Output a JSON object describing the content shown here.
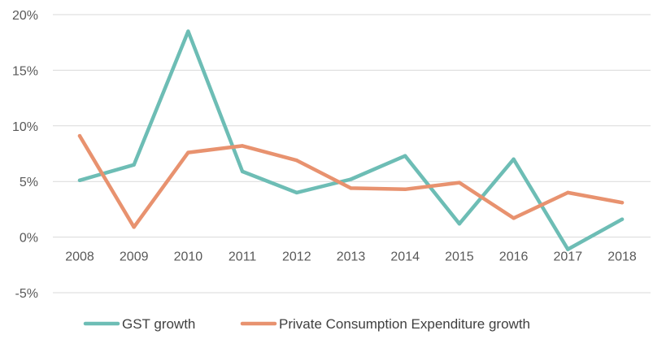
{
  "chart_data": {
    "type": "line",
    "title": "",
    "xlabel": "",
    "ylabel": "",
    "categories": [
      "2008",
      "2009",
      "2010",
      "2011",
      "2012",
      "2013",
      "2014",
      "2015",
      "2016",
      "2017",
      "2018"
    ],
    "ylim": [
      -5,
      20
    ],
    "yticks": [
      -5,
      0,
      5,
      10,
      15,
      20
    ],
    "ytick_labels": [
      "-5%",
      "0%",
      "5%",
      "10%",
      "15%",
      "20%"
    ],
    "grid": true,
    "legend_position": "bottom",
    "series": [
      {
        "name": "GST growth",
        "color": "#6dbdb5",
        "values": [
          5.1,
          6.5,
          18.5,
          5.9,
          4.0,
          5.2,
          7.3,
          1.2,
          7.0,
          -1.1,
          1.6
        ]
      },
      {
        "name": "Private Consumption Expenditure growth",
        "color": "#e8926f",
        "values": [
          9.1,
          0.9,
          7.6,
          8.2,
          6.9,
          4.4,
          4.3,
          4.9,
          1.7,
          4.0,
          3.1
        ]
      }
    ]
  }
}
